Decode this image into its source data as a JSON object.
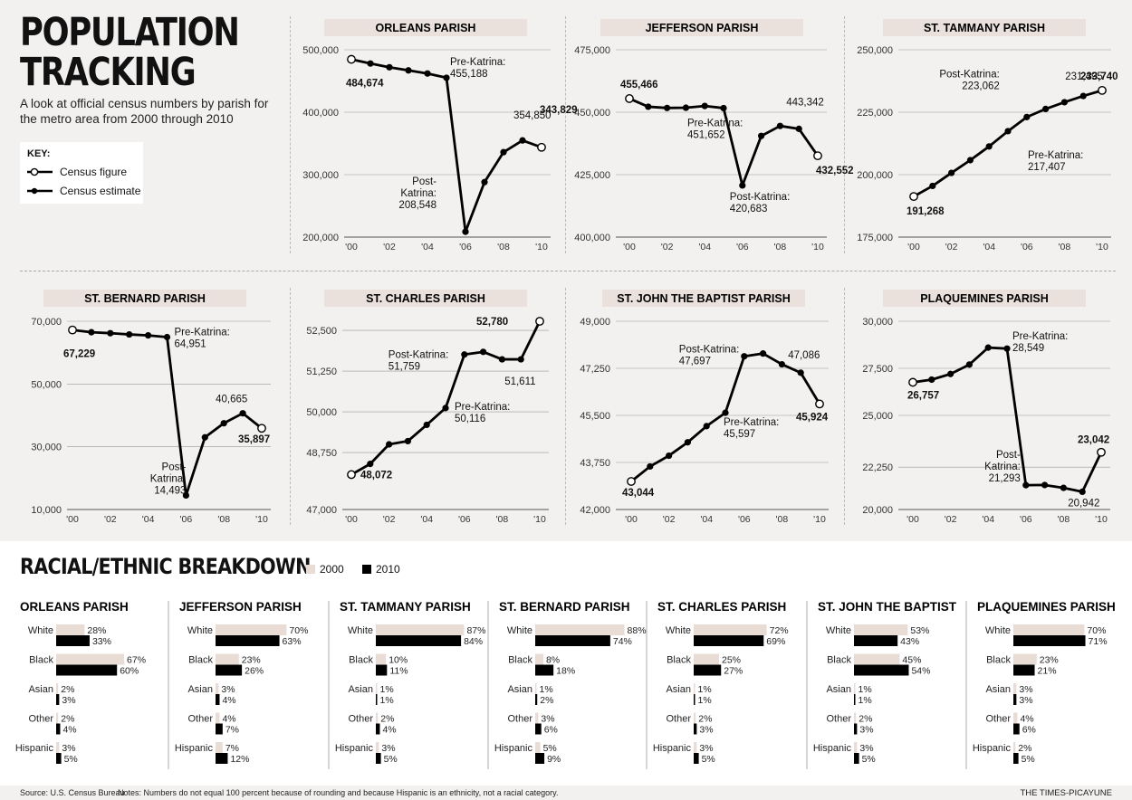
{
  "header": {
    "title": "POPULATION\nTRACKING",
    "subtitle": "A look at official census numbers by parish for the metro area from 2000 through 2010",
    "key_title": "KEY:",
    "key_items": [
      "Census figure",
      "Census estimate"
    ]
  },
  "chart_data": [
    {
      "type": "line",
      "title": "ORLEANS PARISH",
      "x": [
        2000,
        2001,
        2002,
        2003,
        2004,
        2005,
        2006,
        2007,
        2008,
        2009,
        2010
      ],
      "census_points": [
        0,
        10
      ],
      "values": [
        484674,
        478000,
        472000,
        467000,
        462000,
        455188,
        208548,
        288000,
        336000,
        354850,
        343829
      ],
      "yticks": [
        200000,
        300000,
        400000,
        500000
      ],
      "ytick_labels": [
        "200,000",
        "300,000",
        "400,000",
        "500,000"
      ],
      "ylim": [
        200000,
        500000
      ],
      "xtick_labels": [
        "'00",
        "'02",
        "'04",
        "'06",
        "'08",
        "'10"
      ],
      "annotations": [
        {
          "i": 0,
          "text": [
            "484,674"
          ],
          "bold": true,
          "dx": -6,
          "dy": 30
        },
        {
          "i": 5,
          "text": [
            "Pre-Katrina:",
            "455,188"
          ],
          "bold": false,
          "dx": 4,
          "dy": -14
        },
        {
          "i": 6,
          "text": [
            "Post-",
            "Katrina:",
            "208,548"
          ],
          "bold": false,
          "dx": -32,
          "dy": -52,
          "anchor": "end"
        },
        {
          "i": 9,
          "text": [
            "354,850"
          ],
          "bold": false,
          "dx": -10,
          "dy": -24
        },
        {
          "i": 10,
          "text": [
            "343,829"
          ],
          "bold": true,
          "dx": -2,
          "dy": -38
        }
      ]
    },
    {
      "type": "line",
      "title": "JEFFERSON PARISH",
      "x": [
        2000,
        2001,
        2002,
        2003,
        2004,
        2005,
        2006,
        2007,
        2008,
        2009,
        2010
      ],
      "census_points": [
        0,
        10
      ],
      "values": [
        455466,
        452200,
        451700,
        451800,
        452500,
        451652,
        420683,
        440500,
        444500,
        443342,
        432552
      ],
      "yticks": [
        400000,
        425000,
        450000,
        475000
      ],
      "ytick_labels": [
        "400,000",
        "425,000",
        "450,000",
        "475,000"
      ],
      "ylim": [
        400000,
        475000
      ],
      "xtick_labels": [
        "'00",
        "'02",
        "'04",
        "'06",
        "'08",
        "'10"
      ],
      "annotations": [
        {
          "i": 0,
          "text": [
            "455,466"
          ],
          "bold": true,
          "dx": -10,
          "dy": -12
        },
        {
          "i": 5,
          "text": [
            "Pre-Katrina:",
            "451,652"
          ],
          "bold": false,
          "dx": -40,
          "dy": 20
        },
        {
          "i": 6,
          "text": [
            "Post-Katrina:",
            "420,683"
          ],
          "bold": false,
          "dx": -14,
          "dy": 16
        },
        {
          "i": 9,
          "text": [
            "443,342"
          ],
          "bold": false,
          "dx": -14,
          "dy": -26
        },
        {
          "i": 10,
          "text": [
            "432,552"
          ],
          "bold": true,
          "dx": -2,
          "dy": 20
        }
      ]
    },
    {
      "type": "line",
      "title": "ST. TAMMANY PARISH",
      "x": [
        2000,
        2001,
        2002,
        2003,
        2004,
        2005,
        2006,
        2007,
        2008,
        2009,
        2010
      ],
      "census_points": [
        0,
        10
      ],
      "values": [
        191268,
        195500,
        200700,
        205800,
        211300,
        217407,
        223062,
        226300,
        229000,
        231495,
        233740
      ],
      "yticks": [
        175000,
        200000,
        225000,
        250000
      ],
      "ytick_labels": [
        "175,000",
        "200,000",
        "225,000",
        "250,000"
      ],
      "ylim": [
        175000,
        250000
      ],
      "xtick_labels": [
        "'00",
        "'02",
        "'04",
        "'06",
        "'08",
        "'10"
      ],
      "annotations": [
        {
          "i": 0,
          "text": [
            "191,268"
          ],
          "bold": true,
          "dx": -8,
          "dy": 20
        },
        {
          "i": 5,
          "text": [
            "Pre-Katrina:",
            "217,407"
          ],
          "bold": false,
          "dx": 22,
          "dy": 30
        },
        {
          "i": 6,
          "text": [
            "Post-Katrina:",
            "223,062"
          ],
          "bold": false,
          "dx": -30,
          "dy": -44,
          "anchor": "end"
        },
        {
          "i": 9,
          "text": [
            "231,495"
          ],
          "bold": false,
          "dx": -20,
          "dy": -18
        },
        {
          "i": 10,
          "text": [
            "233,740"
          ],
          "bold": true,
          "dx": -24,
          "dy": -12
        }
      ]
    },
    {
      "type": "line",
      "title": "ST. BERNARD PARISH",
      "x": [
        2000,
        2001,
        2002,
        2003,
        2004,
        2005,
        2006,
        2007,
        2008,
        2009,
        2010
      ],
      "census_points": [
        0,
        10
      ],
      "values": [
        67229,
        66500,
        66200,
        65800,
        65500,
        64951,
        14493,
        33000,
        37500,
        40665,
        35897
      ],
      "yticks": [
        10000,
        30000,
        50000,
        70000
      ],
      "ytick_labels": [
        "10,000",
        "30,000",
        "50,000",
        "70,000"
      ],
      "ylim": [
        10000,
        70000
      ],
      "xtick_labels": [
        "'00",
        "'02",
        "'04",
        "'06",
        "'08",
        "'10"
      ],
      "annotations": [
        {
          "i": 0,
          "text": [
            "67,229"
          ],
          "bold": true,
          "dx": -10,
          "dy": 30
        },
        {
          "i": 5,
          "text": [
            "Pre-Katrina:",
            "64,951"
          ],
          "bold": false,
          "dx": 8,
          "dy": -2
        },
        {
          "i": 6,
          "text": [
            "Post-",
            "Katrina:",
            "14,493"
          ],
          "bold": false,
          "dx": 0,
          "dy": -28,
          "anchor": "end"
        },
        {
          "i": 9,
          "text": [
            "40,665"
          ],
          "bold": false,
          "dx": -30,
          "dy": -12
        },
        {
          "i": 10,
          "text": [
            "35,897"
          ],
          "bold": true,
          "dx": -26,
          "dy": 16
        }
      ]
    },
    {
      "type": "line",
      "title": "ST. CHARLES PARISH",
      "x": [
        2000,
        2001,
        2002,
        2003,
        2004,
        2005,
        2006,
        2007,
        2008,
        2009,
        2010
      ],
      "census_points": [
        0,
        10
      ],
      "values": [
        48072,
        48400,
        49000,
        49100,
        49600,
        50116,
        51759,
        51840,
        51611,
        51611,
        52780
      ],
      "yticks": [
        47000,
        48750,
        50000,
        51250,
        52500
      ],
      "ytick_labels": [
        "47,000",
        "48,750",
        "50,000",
        "51,250",
        "52,500"
      ],
      "ylim": [
        47000,
        52780
      ],
      "xtick_labels": [
        "'00",
        "'02",
        "'04",
        "'06",
        "'08",
        "'10"
      ],
      "annotations": [
        {
          "i": 0,
          "text": [
            "48,072"
          ],
          "bold": true,
          "dx": 10,
          "dy": 4
        },
        {
          "i": 5,
          "text": [
            "Pre-Katrina:",
            "50,116"
          ],
          "bold": false,
          "dx": 10,
          "dy": 2
        },
        {
          "i": 6,
          "text": [
            "Post-Katrina:",
            "51,759"
          ],
          "bold": false,
          "dx": -84,
          "dy": 4
        },
        {
          "i": 9,
          "text": [
            "51,611"
          ],
          "bold": false,
          "dx": -18,
          "dy": 28
        },
        {
          "i": 10,
          "text": [
            "52,780"
          ],
          "bold": true,
          "dx": -70,
          "dy": 4
        }
      ]
    },
    {
      "type": "line",
      "title": "ST. JOHN THE BAPTIST PARISH",
      "x": [
        2000,
        2001,
        2002,
        2003,
        2004,
        2005,
        2006,
        2007,
        2008,
        2009,
        2010
      ],
      "census_points": [
        0,
        10
      ],
      "values": [
        43044,
        43600,
        44000,
        44500,
        45100,
        45597,
        47697,
        47800,
        47400,
        47086,
        45924
      ],
      "yticks": [
        42000,
        43750,
        45500,
        47250,
        49000
      ],
      "ytick_labels": [
        "42,000",
        "43,750",
        "45,500",
        "47,250",
        "49,000"
      ],
      "ylim": [
        42000,
        49000
      ],
      "xtick_labels": [
        "'00",
        "'02",
        "'04",
        "'06",
        "'08",
        "'10"
      ],
      "annotations": [
        {
          "i": 0,
          "text": [
            "43,044"
          ],
          "bold": true,
          "dx": -10,
          "dy": 16
        },
        {
          "i": 5,
          "text": [
            "Pre-Katrina:",
            "45,597"
          ],
          "bold": false,
          "dx": -2,
          "dy": 14
        },
        {
          "i": 6,
          "text": [
            "Post-Katrina:",
            "47,697"
          ],
          "bold": false,
          "dx": -72,
          "dy": -4
        },
        {
          "i": 9,
          "text": [
            "47,086"
          ],
          "bold": false,
          "dx": -14,
          "dy": -16
        },
        {
          "i": 10,
          "text": [
            "45,924"
          ],
          "bold": true,
          "dx": -26,
          "dy": 18
        }
      ]
    },
    {
      "type": "line",
      "title": "PLAQUEMINES PARISH",
      "x": [
        2000,
        2001,
        2002,
        2003,
        2004,
        2005,
        2006,
        2007,
        2008,
        2009,
        2010
      ],
      "census_points": [
        0,
        10
      ],
      "values": [
        26757,
        26900,
        27200,
        27700,
        28600,
        28549,
        21293,
        21300,
        21150,
        20942,
        23042
      ],
      "yticks": [
        20000,
        22250,
        25000,
        27500,
        30000
      ],
      "ytick_labels": [
        "20,000",
        "22,250",
        "25,000",
        "27,500",
        "30,000"
      ],
      "ylim": [
        20000,
        30000
      ],
      "xtick_labels": [
        "'00",
        "'02",
        "'04",
        "'06",
        "'08",
        "'10"
      ],
      "annotations": [
        {
          "i": 0,
          "text": [
            "26,757"
          ],
          "bold": true,
          "dx": -6,
          "dy": 18
        },
        {
          "i": 5,
          "text": [
            "Pre-Katrina:",
            "28,549"
          ],
          "bold": false,
          "dx": 6,
          "dy": -10
        },
        {
          "i": 6,
          "text": [
            "Post-",
            "Katrina:",
            "21,293"
          ],
          "bold": false,
          "dx": -6,
          "dy": -30,
          "anchor": "end"
        },
        {
          "i": 9,
          "text": [
            "20,942"
          ],
          "bold": false,
          "dx": -16,
          "dy": 16
        },
        {
          "i": 10,
          "text": [
            "23,042"
          ],
          "bold": true,
          "dx": -26,
          "dy": -10
        }
      ]
    }
  ],
  "racial": {
    "title": "RACIAL/ETHNIC BREAKDOWN",
    "legend": [
      "2000",
      "2010"
    ],
    "colors": {
      "y2000": "#e9dcd5",
      "y2010": "#000000"
    },
    "categories": [
      "White",
      "Black",
      "Asian",
      "Other",
      "Hispanic"
    ],
    "parishes": [
      {
        "name": "ORLEANS PARISH",
        "v2000": [
          28,
          67,
          2,
          2,
          3
        ],
        "v2010": [
          33,
          60,
          3,
          4,
          5
        ]
      },
      {
        "name": "JEFFERSON PARISH",
        "v2000": [
          70,
          23,
          3,
          4,
          7
        ],
        "v2010": [
          63,
          26,
          4,
          7,
          12
        ]
      },
      {
        "name": "ST. TAMMANY PARISH",
        "v2000": [
          87,
          10,
          1,
          2,
          3
        ],
        "v2010": [
          84,
          11,
          1,
          4,
          5
        ]
      },
      {
        "name": "ST. BERNARD PARISH",
        "v2000": [
          88,
          8,
          1,
          3,
          5
        ],
        "v2010": [
          74,
          18,
          2,
          6,
          9
        ]
      },
      {
        "name": "ST. CHARLES PARISH",
        "v2000": [
          72,
          25,
          1,
          2,
          3
        ],
        "v2010": [
          69,
          27,
          1,
          3,
          5
        ]
      },
      {
        "name": "ST. JOHN THE BAPTIST",
        "v2000": [
          53,
          45,
          1,
          2,
          3
        ],
        "v2010": [
          43,
          54,
          1,
          3,
          5
        ]
      },
      {
        "name": "PLAQUEMINES PARISH",
        "v2000": [
          70,
          23,
          3,
          4,
          2
        ],
        "v2010": [
          71,
          21,
          3,
          6,
          5
        ]
      }
    ]
  },
  "footer": {
    "source": "Source: U.S. Census Bureau",
    "notes": "Notes: Numbers do not equal 100 percent because of rounding and because Hispanic is an ethnicity, not a racial category.",
    "credit": "THE TIMES-PICAYUNE"
  }
}
